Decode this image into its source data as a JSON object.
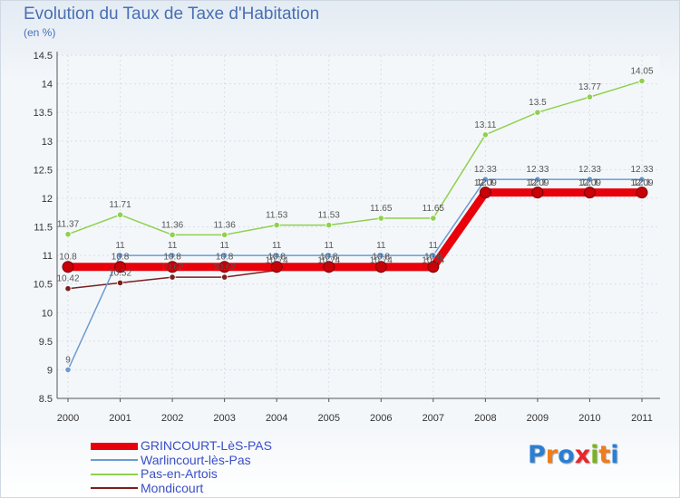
{
  "title": "Evolution du Taux de Taxe d'Habitation",
  "unit": "(en %)",
  "logo": {
    "text": "Proxiti",
    "colors": [
      "#2a7fd4",
      "#f07c1a",
      "#2a7fd4",
      "#e8262b",
      "#7ab31f",
      "#f07c1a",
      "#2a7fd4"
    ]
  },
  "chart_data": {
    "type": "line",
    "title": "Evolution du Taux de Taxe d'Habitation",
    "ylabel": "(en %)",
    "xlabel": "",
    "ylim": [
      8.5,
      14.5
    ],
    "yticks": [
      "8.5",
      "9",
      "9.5",
      "10",
      "10.5",
      "11",
      "11.5",
      "12",
      "12.5",
      "13",
      "13.5",
      "14",
      "14.5"
    ],
    "categories": [
      "2000",
      "2001",
      "2002",
      "2003",
      "2004",
      "2005",
      "2006",
      "2007",
      "2008",
      "2009",
      "2010",
      "2011"
    ],
    "series": [
      {
        "name": "GRINCOURT-LèS-PAS",
        "color": "#e8000b",
        "values": [
          10.8,
          10.8,
          10.8,
          10.8,
          10.8,
          10.8,
          10.8,
          10.8,
          12.1,
          12.1,
          12.1,
          12.1
        ],
        "labels": [
          "10.8",
          "10.8",
          "10.8",
          "10.8",
          "10.8",
          "10.8",
          "10.8",
          "10.8",
          "12.1",
          "12.1",
          "12.1",
          "12.1"
        ]
      },
      {
        "name": "Warlincourt-lès-Pas",
        "color": "#6b9bd2",
        "values": [
          9,
          11,
          11,
          11,
          11,
          11,
          11,
          11,
          12.33,
          12.33,
          12.33,
          12.33
        ],
        "labels": [
          "9",
          "11",
          "11",
          "11",
          "11",
          "11",
          "11",
          "11",
          "12.33",
          "12.33",
          "12.33",
          "12.33"
        ]
      },
      {
        "name": "Pas-en-Artois",
        "color": "#8fd14f",
        "values": [
          11.37,
          11.71,
          11.36,
          11.36,
          11.53,
          11.53,
          11.65,
          11.65,
          13.11,
          13.5,
          13.77,
          14.05
        ],
        "labels": [
          "11.37",
          "11.71",
          "11.36",
          "11.36",
          "11.53",
          "11.53",
          "11.65",
          "11.65",
          "13.11",
          "13.5",
          "13.77",
          "14.05"
        ]
      },
      {
        "name": "Mondicourt",
        "color": "#7a1f1f",
        "values": [
          10.42,
          10.52,
          10.62,
          10.62,
          10.74,
          10.74,
          10.74,
          10.74,
          12.09,
          12.09,
          12.09,
          12.09
        ],
        "labels": [
          "10.42",
          "10.52",
          "10.62",
          "10.62",
          "10.74",
          "10.74",
          "10.74",
          "10.74",
          "12.09",
          "12.09",
          "12.09",
          "12.09"
        ]
      }
    ]
  }
}
